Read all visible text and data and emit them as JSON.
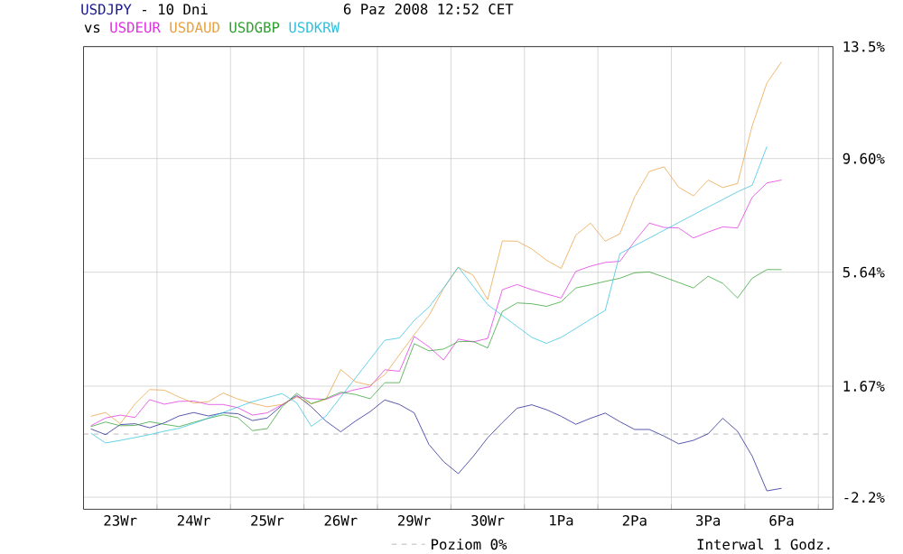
{
  "chart_data": {
    "type": "line",
    "title": "- 10 Dni",
    "subtitle": "6 Paz 2008 12:52 CET",
    "legend_title": "vs",
    "legend": "bottom",
    "grid": true,
    "annotations": [
      "Interwal 1 Godz."
    ],
    "categories": [
      null,
      null,
      "23Wr",
      null,
      null,
      null,
      null,
      "24Wr",
      null,
      null,
      null,
      null,
      "25Wr",
      null,
      null,
      null,
      null,
      "26Wr",
      null,
      null,
      null,
      null,
      "29Wr",
      null,
      null,
      null,
      null,
      "30Wr",
      null,
      null,
      null,
      null,
      "1Pa",
      null,
      null,
      null,
      null,
      "2Pa",
      null,
      null,
      null,
      null,
      "3Pa",
      null,
      null,
      null,
      null,
      "6Pa",
      null,
      null,
      null
    ],
    "ylim": [
      -2.62,
      13.5
    ],
    "yticks": [
      {
        "value": -2.2,
        "label": "-2.2%"
      },
      {
        "value": 1.67,
        "label": "1.67%"
      },
      {
        "value": 5.64,
        "label": "5.64%"
      },
      {
        "value": 9.6,
        "label": "9.60%"
      },
      {
        "value": 13.5,
        "label": "13.5%"
      }
    ],
    "ref_lines": [
      {
        "axis": "y",
        "value": 0,
        "label": "Poziom 0%",
        "color": "#a0a0a0",
        "line_style": "dashed"
      }
    ],
    "series": [
      {
        "name": "USDJPY",
        "color": "#1c1c90",
        "values": [
          0.18,
          -0.02,
          0.33,
          0.36,
          0.22,
          0.39,
          0.63,
          0.75,
          0.63,
          0.74,
          0.71,
          0.47,
          0.56,
          1.0,
          1.35,
          0.95,
          0.45,
          0.08,
          0.45,
          0.78,
          1.19,
          1.03,
          0.74,
          -0.36,
          -0.96,
          -1.38,
          -0.79,
          -0.13,
          0.4,
          0.9,
          1.02,
          0.85,
          0.62,
          0.34,
          0.55,
          0.73,
          0.43,
          0.16,
          0.16,
          -0.07,
          -0.34,
          -0.22,
          0.01,
          0.55,
          0.1,
          -0.77,
          -1.98,
          -1.89,
          null,
          null,
          null
        ]
      },
      {
        "name": "USDEUR",
        "color": "#e030e0",
        "values": [
          0.29,
          0.56,
          0.66,
          0.58,
          1.2,
          1.04,
          1.14,
          1.15,
          1.03,
          1.03,
          0.92,
          0.66,
          0.74,
          1.02,
          1.3,
          1.23,
          1.21,
          1.41,
          1.55,
          1.65,
          2.24,
          2.19,
          3.4,
          3.04,
          2.58,
          3.31,
          3.21,
          3.33,
          5.03,
          5.21,
          5.03,
          4.88,
          4.74,
          5.67,
          5.85,
          5.98,
          6.02,
          6.72,
          7.35,
          7.2,
          7.18,
          6.83,
          7.04,
          7.22,
          7.18,
          8.25,
          8.75,
          8.85,
          null,
          null,
          null
        ]
      },
      {
        "name": "USDAUD",
        "color": "#e8a040",
        "values": [
          0.62,
          0.75,
          0.36,
          1.05,
          1.55,
          1.53,
          1.29,
          1.08,
          1.13,
          1.43,
          1.22,
          1.07,
          0.95,
          1.03,
          1.3,
          1.05,
          1.21,
          2.25,
          1.82,
          1.7,
          2.07,
          2.77,
          3.46,
          4.12,
          5.07,
          5.81,
          5.54,
          4.69,
          6.73,
          6.72,
          6.45,
          6.06,
          5.77,
          6.93,
          7.35,
          6.72,
          6.98,
          8.26,
          9.15,
          9.31,
          8.6,
          8.3,
          8.85,
          8.59,
          8.73,
          10.74,
          12.23,
          12.97,
          null,
          null,
          null
        ]
      },
      {
        "name": "USDGBP",
        "color": "#30a030",
        "values": [
          0.26,
          0.42,
          0.29,
          0.3,
          0.43,
          0.34,
          0.26,
          0.41,
          0.55,
          0.67,
          0.57,
          0.12,
          0.19,
          0.94,
          1.42,
          1.06,
          1.24,
          1.46,
          1.38,
          1.23,
          1.79,
          1.79,
          3.15,
          2.9,
          2.96,
          3.22,
          3.23,
          3.0,
          4.27,
          4.57,
          4.54,
          4.45,
          4.61,
          5.09,
          5.2,
          5.32,
          5.43,
          5.62,
          5.65,
          5.47,
          5.28,
          5.09,
          5.5,
          5.25,
          4.74,
          5.43,
          5.73,
          5.73,
          null,
          null,
          null
        ]
      },
      {
        "name": "USDKRW",
        "color": "#30c0e0",
        "values": [
          0.03,
          -0.31,
          -0.22,
          -0.12,
          -0.02,
          0.1,
          0.2,
          0.37,
          0.56,
          0.75,
          0.94,
          1.13,
          1.27,
          1.41,
          1.09,
          0.27,
          0.63,
          1.29,
          1.95,
          2.61,
          3.27,
          3.35,
          3.96,
          4.42,
          5.09,
          5.82,
          5.16,
          4.51,
          4.13,
          3.75,
          3.37,
          3.16,
          3.37,
          3.68,
          4.0,
          4.31,
          6.29,
          6.56,
          6.83,
          7.1,
          7.37,
          7.64,
          7.91,
          8.17,
          8.44,
          8.67,
          10.02,
          null,
          null,
          null,
          null
        ]
      }
    ]
  }
}
